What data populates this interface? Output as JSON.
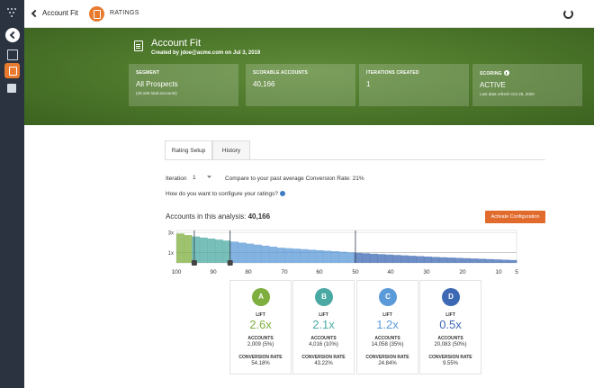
{
  "topbar": {
    "back_label": "Account Fit",
    "section_title": "RATINGS"
  },
  "hero": {
    "title": "Account Fit",
    "subtitle": "Created by jdoe@acme.com on Jul 3, 2019",
    "stats": [
      {
        "label": "SEGMENT",
        "value": "All Prospects",
        "note": "(40,166 total accounts)"
      },
      {
        "label": "SCORABLE ACCOUNTS",
        "value": "40,166",
        "note": ""
      },
      {
        "label": "ITERATIONS CREATED",
        "value": "1",
        "note": ""
      },
      {
        "label": "SCORING",
        "value": "ACTIVE",
        "note": "Last data refresh Oct 26, 2020"
      }
    ]
  },
  "tabs": [
    {
      "label": "Rating Setup",
      "active": true
    },
    {
      "label": "History",
      "active": false
    }
  ],
  "iteration": {
    "label": "Iteration",
    "selected": "1",
    "compare_text": "Compare to your past average Conversion Rate: 21%"
  },
  "config_question": "How do you want to configure your ratings?",
  "accounts": {
    "label": "Accounts in this analysis:",
    "value": "40,166"
  },
  "activate_button": "Activate Configuration",
  "chart_data": {
    "type": "area",
    "y_ticks": [
      "3x",
      "1x"
    ],
    "x_ticks": [
      "100",
      "90",
      "80",
      "70",
      "60",
      "50",
      "40",
      "30",
      "20",
      "10",
      "5"
    ],
    "x_min": 100,
    "x_max": 5,
    "lift_values": [
      2.9,
      2.75,
      2.6,
      2.5,
      2.4,
      2.3,
      2.2,
      2.1,
      2.0,
      1.9,
      1.8,
      1.7,
      1.6,
      1.5,
      1.45,
      1.4,
      1.35,
      1.3,
      1.25,
      1.2,
      1.15,
      1.1,
      1.05,
      1.0,
      0.95,
      0.9,
      0.86,
      0.82,
      0.78,
      0.74,
      0.7,
      0.66,
      0.62,
      0.58,
      0.55,
      0.52,
      0.49,
      0.46,
      0.43,
      0.4,
      0.37,
      0.34,
      0.31,
      0.28
    ],
    "cutoffs": [
      95,
      85,
      50
    ],
    "grade_colors": [
      "#7dae3e",
      "#4ba9a3",
      "#5b9ad8",
      "#3d68b3"
    ]
  },
  "grades": [
    {
      "letter": "A",
      "color": "#7dae3e",
      "lift_label": "LIFT",
      "lift": "2.6x",
      "acc_label": "ACCOUNTS",
      "accounts": "2,009 (5%)",
      "cr_label": "CONVERSION RATE",
      "conversion_rate": "54.18%"
    },
    {
      "letter": "B",
      "color": "#4ba9a3",
      "lift_label": "LIFT",
      "lift": "2.1x",
      "acc_label": "ACCOUNTS",
      "accounts": "4,016 (10%)",
      "cr_label": "CONVERSION RATE",
      "conversion_rate": "43.22%"
    },
    {
      "letter": "C",
      "color": "#5b9ad8",
      "lift_label": "LIFT",
      "lift": "1.2x",
      "acc_label": "ACCOUNTS",
      "accounts": "14,058 (35%)",
      "cr_label": "CONVERSION RATE",
      "conversion_rate": "24.84%"
    },
    {
      "letter": "D",
      "color": "#3d68b3",
      "lift_label": "LIFT",
      "lift": "0.5x",
      "acc_label": "ACCOUNTS",
      "accounts": "20,083 (50%)",
      "cr_label": "CONVERSION RATE",
      "conversion_rate": "9.55%"
    }
  ]
}
